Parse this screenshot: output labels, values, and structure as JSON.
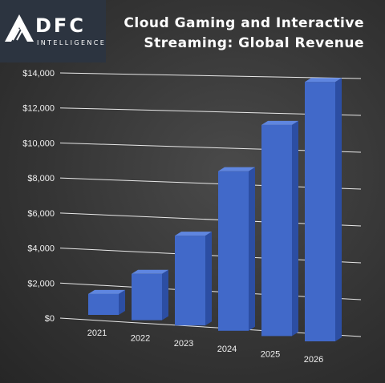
{
  "logo": {
    "name": "DFC",
    "tagline": "INTELLIGENCE"
  },
  "chart_data": {
    "type": "bar",
    "title_lines": [
      "Cloud Gaming and Interactive",
      "Streaming: Global Revenue"
    ],
    "xlabel": "",
    "ylabel": "",
    "categories": [
      "2021",
      "2022",
      "2023",
      "2024",
      "2025",
      "2026"
    ],
    "series": [
      {
        "values": [
          1300,
          2800,
          5300,
          9200,
          11900,
          14300
        ]
      }
    ],
    "yticks": [
      "$0",
      "$2,000",
      "$4,000",
      "$6,000",
      "$8,000",
      "$10,000",
      "$12,000",
      "$14,000"
    ],
    "ylim": [
      0,
      14000
    ],
    "grid": true,
    "style": "3d-perspective",
    "colors": {
      "bar_front": "#4169c9",
      "bar_top": "#5f86e0",
      "bar_side": "#2c4ea3",
      "grid": "#e8e8e8"
    }
  }
}
